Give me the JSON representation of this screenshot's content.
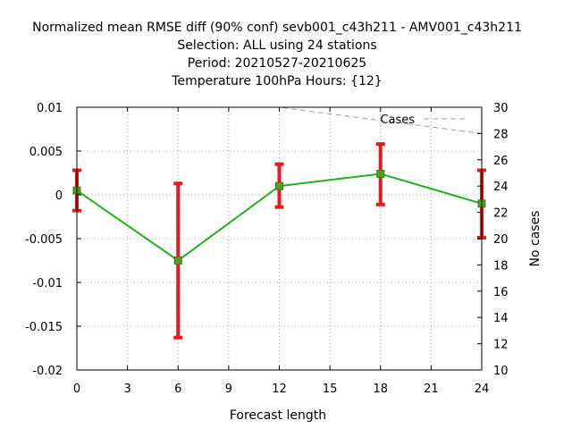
{
  "chart_data": {
    "type": "line",
    "title_lines": [
      "Normalized mean RMSE diff (90% conf) sevb001_c43h211 - AMV001_c43h211",
      "Selection: ALL using    24 stations",
      "Period: 20210527-20210625",
      "Temperature 100hPa   Hours: {12}"
    ],
    "xlabel": "Forecast length",
    "ylabel": "",
    "y2label": "No cases",
    "xlim": [
      0,
      24
    ],
    "ylim": [
      -0.02,
      0.01
    ],
    "y2lim": [
      10,
      30
    ],
    "x_ticks": [
      0,
      3,
      6,
      9,
      12,
      15,
      18,
      21,
      24
    ],
    "x_tick_labels": [
      "0",
      "3",
      "6",
      "9",
      "12",
      "15",
      "18",
      "21",
      "24"
    ],
    "y_ticks": [
      0.01,
      0.005,
      0,
      -0.005,
      -0.01,
      -0.015,
      -0.02
    ],
    "y_tick_labels": [
      "0.01",
      "0.005",
      "0",
      "-0.005",
      "-0.01",
      "-0.015",
      "-0.02"
    ],
    "y2_ticks": [
      30,
      28,
      26,
      24,
      22,
      20,
      18,
      16,
      14,
      12,
      10
    ],
    "y2_tick_labels": [
      "30",
      "28",
      "26",
      "24",
      "22",
      "20",
      "18",
      "16",
      "14",
      "12",
      "10"
    ],
    "grid": true,
    "series": [
      {
        "x": [
          0,
          6,
          12,
          18,
          24
        ],
        "y": [
          0.0005,
          -0.0075,
          0.001,
          0.0024,
          -0.001
        ],
        "err_low": [
          -0.0018,
          -0.0163,
          -0.0014,
          -0.0011,
          -0.0049
        ],
        "err_high": [
          0.0028,
          0.0013,
          0.0035,
          0.0058,
          0.0028
        ],
        "color": "#22b022",
        "error_color": "#e41a1c"
      },
      {
        "name": "Cases",
        "axis": "y2",
        "x": [
          0,
          12,
          18,
          24
        ],
        "y": [
          30,
          30,
          29,
          28
        ],
        "color": "#a0a0a0",
        "style": "dashed"
      }
    ],
    "legend": "top-right"
  }
}
